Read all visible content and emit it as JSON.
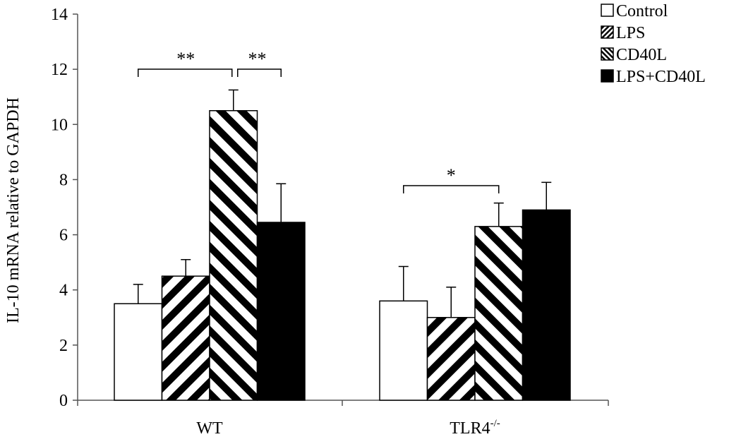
{
  "chart_data": {
    "type": "bar",
    "title": "",
    "xlabel": "",
    "ylabel": "IL-10 mRNA relative to GAPDH",
    "ylim": [
      0,
      14
    ],
    "yticks": [
      0,
      2,
      4,
      6,
      8,
      10,
      12,
      14
    ],
    "grid": false,
    "legend_position": "top-right",
    "categories": [
      "WT",
      "TLR4"
    ],
    "category_superscripts": [
      "",
      "-/-"
    ],
    "series": [
      {
        "name": "Control",
        "pattern": "none",
        "color": "#ffffff",
        "values": [
          3.5,
          3.6
        ],
        "errors": [
          0.7,
          1.25
        ]
      },
      {
        "name": "LPS",
        "pattern": "diagonal-forward",
        "color": "#000000",
        "values": [
          4.5,
          3.0
        ],
        "errors": [
          0.6,
          1.1
        ]
      },
      {
        "name": "CD40L",
        "pattern": "diagonal-back",
        "color": "#000000",
        "values": [
          10.5,
          6.3
        ],
        "errors": [
          0.75,
          0.85
        ]
      },
      {
        "name": "LPS+CD40L",
        "pattern": "solid",
        "color": "#000000",
        "values": [
          6.45,
          6.9
        ],
        "errors": [
          1.4,
          1.0
        ]
      }
    ],
    "significance": [
      {
        "category": 0,
        "from_series": 0,
        "to_series": 2,
        "label": "**"
      },
      {
        "category": 0,
        "from_series": 2,
        "to_series": 3,
        "label": "**"
      },
      {
        "category": 1,
        "from_series": 0,
        "to_series": 2,
        "label": "*"
      }
    ]
  }
}
